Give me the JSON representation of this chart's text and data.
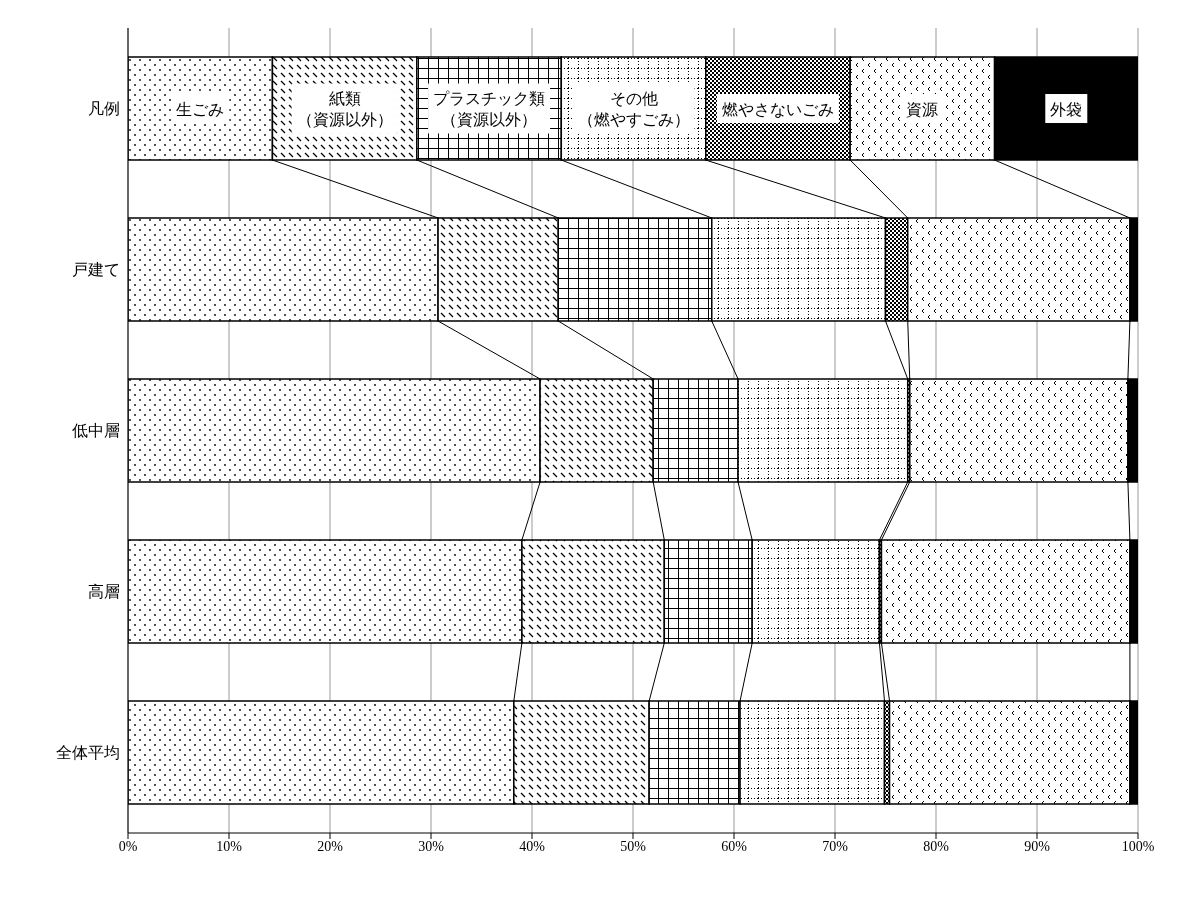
{
  "chart_data": {
    "type": "bar",
    "orientation": "horizontal",
    "stacked": true,
    "grid": "x",
    "categories": [
      "凡例",
      "戸建て",
      "低中層",
      "高層",
      "全体平均"
    ],
    "series": [
      {
        "name": "生ごみ",
        "color": "#000000",
        "values": [
          14.3,
          30.7,
          40.8,
          39.0,
          38.2
        ]
      },
      {
        "name": "紙類（資源以外）",
        "color": "#000000",
        "values": [
          14.3,
          11.9,
          11.2,
          14.1,
          13.4
        ]
      },
      {
        "name": "プラスチック類（資源以外）",
        "color": "#000000",
        "values": [
          14.3,
          15.2,
          8.4,
          8.7,
          9.0
        ]
      },
      {
        "name": "その他（燃やすごみ）",
        "color": "#000000",
        "values": [
          14.3,
          17.2,
          16.8,
          12.6,
          14.3
        ]
      },
      {
        "name": "燃やさないごみ",
        "color": "#000000",
        "values": [
          14.3,
          2.2,
          0.2,
          0.2,
          0.5
        ]
      },
      {
        "name": "資源",
        "color": "#000000",
        "values": [
          14.3,
          22.0,
          21.6,
          24.6,
          23.8
        ]
      },
      {
        "name": "外袋",
        "color": "#000000",
        "values": [
          14.2,
          0.8,
          1.0,
          0.8,
          0.8
        ]
      }
    ],
    "xlim": [
      0,
      100
    ],
    "xticks": [
      {
        "value": 0,
        "label": "0%"
      },
      {
        "value": 10,
        "label": "10%"
      },
      {
        "value": 20,
        "label": "20%"
      },
      {
        "value": 30,
        "label": "30%"
      },
      {
        "value": 40,
        "label": "40%"
      },
      {
        "value": 50,
        "label": "50%"
      },
      {
        "value": 60,
        "label": "60%"
      },
      {
        "value": 70,
        "label": "70%"
      },
      {
        "value": 80,
        "label": "80%"
      },
      {
        "value": 90,
        "label": "90%"
      },
      {
        "value": 100,
        "label": "100%"
      }
    ]
  }
}
